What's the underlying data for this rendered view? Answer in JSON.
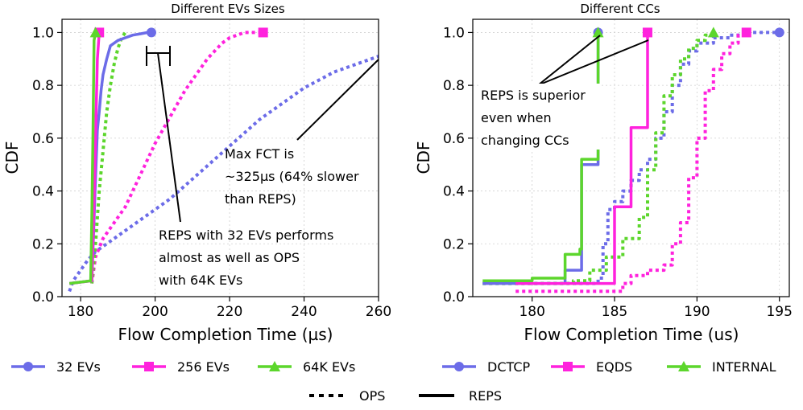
{
  "colors": {
    "c32": "#6c6ce8",
    "c256": "#ff22dd",
    "c64k": "#5cd62c"
  },
  "chart_data": [
    {
      "type": "line",
      "title": "Different EVs Sizes",
      "xlabel": "Flow Completion Time (µs)",
      "ylabel": "CDF",
      "xlim": [
        175,
        260
      ],
      "ylim": [
        0,
        1.05
      ],
      "xticks": [
        180,
        200,
        220,
        240,
        260
      ],
      "yticks": [
        0.0,
        0.2,
        0.4,
        0.6,
        0.8,
        1.0
      ],
      "xtick_labels": [
        "180",
        "200",
        "220",
        "240",
        "260"
      ],
      "ytick_labels": [
        "0.0",
        "0.2",
        "0.4",
        "0.6",
        "0.8",
        "1.0"
      ],
      "series": [
        {
          "name": "32 EVs OPS",
          "color_key": "c32",
          "style": "dotted",
          "endmarker": "none",
          "x": [
            177,
            178,
            180,
            182,
            184,
            188,
            192,
            196,
            200,
            204,
            208,
            212,
            216,
            220,
            224,
            228,
            232,
            236,
            240,
            244,
            248,
            252,
            256,
            260
          ],
          "y": [
            0.02,
            0.06,
            0.1,
            0.14,
            0.17,
            0.21,
            0.25,
            0.29,
            0.33,
            0.37,
            0.42,
            0.47,
            0.52,
            0.57,
            0.62,
            0.67,
            0.71,
            0.75,
            0.79,
            0.82,
            0.85,
            0.87,
            0.89,
            0.91
          ]
        },
        {
          "name": "256 EVs OPS",
          "color_key": "c256",
          "style": "dotted",
          "endmarker": "square",
          "x": [
            183,
            184,
            186,
            188,
            190,
            192,
            194,
            196,
            198,
            200,
            202,
            204,
            206,
            208,
            210,
            212,
            214,
            216,
            218,
            220,
            222,
            224,
            226,
            229
          ],
          "y": [
            0.05,
            0.15,
            0.22,
            0.26,
            0.3,
            0.34,
            0.4,
            0.46,
            0.52,
            0.58,
            0.63,
            0.68,
            0.73,
            0.78,
            0.82,
            0.86,
            0.9,
            0.93,
            0.96,
            0.98,
            0.99,
            1.0,
            1.0,
            1.0
          ]
        },
        {
          "name": "64K EVs OPS",
          "color_key": "c64k",
          "style": "dotted",
          "endmarker": "none",
          "x": [
            183,
            184,
            185,
            186,
            187,
            188,
            189,
            190,
            191,
            192
          ],
          "y": [
            0.05,
            0.2,
            0.4,
            0.55,
            0.7,
            0.8,
            0.88,
            0.94,
            0.98,
            1.0
          ]
        },
        {
          "name": "32 EVs REPS",
          "color_key": "c32",
          "style": "solid",
          "endmarker": "circle",
          "x": [
            177,
            183,
            183.5,
            184,
            184.5,
            185,
            185.5,
            186,
            187,
            188,
            190,
            192,
            194,
            196,
            198,
            199
          ],
          "y": [
            0.05,
            0.06,
            0.25,
            0.45,
            0.63,
            0.7,
            0.78,
            0.84,
            0.9,
            0.95,
            0.97,
            0.98,
            0.99,
            0.995,
            1.0,
            1.0
          ]
        },
        {
          "name": "256 EVs REPS",
          "color_key": "c256",
          "style": "solid",
          "endmarker": "square",
          "x": [
            177,
            183,
            183.5,
            184,
            184.5,
            185
          ],
          "y": [
            0.05,
            0.06,
            0.3,
            0.6,
            0.9,
            1.0
          ]
        },
        {
          "name": "64K EVs REPS",
          "color_key": "c64k",
          "style": "solid",
          "endmarker": "triangle",
          "x": [
            177,
            182.7,
            183,
            183.3,
            183.6,
            184
          ],
          "y": [
            0.05,
            0.06,
            0.3,
            0.6,
            0.97,
            1.0
          ]
        }
      ],
      "annotations": [
        {
          "lines": [
            "Max FCT is",
            "~325µs (64% slower",
            "than REPS)"
          ]
        },
        {
          "lines": [
            "REPS with 32 EVs performs",
            "almost as well as OPS",
            "with 64K EVs"
          ]
        }
      ]
    },
    {
      "type": "line",
      "title": "Different CCs",
      "xlabel": "Flow Completion Time (us)",
      "ylabel": "CDF",
      "xlim": [
        176.4,
        195.6
      ],
      "ylim": [
        0,
        1.05
      ],
      "xticks": [
        180,
        185,
        190,
        195
      ],
      "yticks": [
        0.0,
        0.2,
        0.4,
        0.6,
        0.8,
        1.0
      ],
      "xtick_labels": [
        "180",
        "185",
        "190",
        "195"
      ],
      "ytick_labels": [
        "0.0",
        "0.2",
        "0.4",
        "0.6",
        "0.8",
        "1.0"
      ],
      "series": [
        {
          "name": "DCTCP OPS",
          "color_key": "c32",
          "style": "dotted",
          "endmarker": "circle",
          "step": true,
          "x": [
            177,
            184,
            184.3,
            184.6,
            185,
            185.5,
            186,
            186.5,
            187,
            187.5,
            188,
            188.5,
            189,
            189.5,
            190,
            191,
            192,
            193,
            195
          ],
          "y": [
            0.05,
            0.07,
            0.2,
            0.33,
            0.36,
            0.4,
            0.44,
            0.48,
            0.52,
            0.6,
            0.7,
            0.8,
            0.88,
            0.93,
            0.96,
            0.98,
            0.99,
            1.0,
            1.0
          ]
        },
        {
          "name": "EQDS OPS",
          "color_key": "c256",
          "style": "dotted",
          "endmarker": "square",
          "step": true,
          "x": [
            179,
            185.5,
            186,
            187,
            188,
            188.5,
            189,
            189.5,
            190,
            190.5,
            191,
            191.5,
            192,
            192.5,
            193
          ],
          "y": [
            0.02,
            0.05,
            0.08,
            0.1,
            0.12,
            0.2,
            0.28,
            0.45,
            0.6,
            0.78,
            0.86,
            0.92,
            0.96,
            0.99,
            1.0
          ]
        },
        {
          "name": "INTERNAL OPS",
          "color_key": "c64k",
          "style": "dotted",
          "endmarker": "triangle",
          "step": true,
          "x": [
            177,
            182.5,
            183.5,
            184.5,
            185.5,
            186.5,
            187,
            187.5,
            188,
            188.5,
            189,
            189.5,
            190,
            190.5,
            191
          ],
          "y": [
            0.05,
            0.06,
            0.1,
            0.15,
            0.22,
            0.3,
            0.48,
            0.62,
            0.76,
            0.84,
            0.9,
            0.94,
            0.97,
            0.99,
            1.0
          ]
        },
        {
          "name": "DCTCP REPS",
          "color_key": "c32",
          "style": "solid",
          "endmarker": "circle",
          "step": true,
          "x": [
            177,
            182,
            183,
            184
          ],
          "y": [
            0.05,
            0.1,
            0.5,
            1.0
          ]
        },
        {
          "name": "EQDS REPS",
          "color_key": "c256",
          "style": "solid",
          "endmarker": "square",
          "step": true,
          "x": [
            179,
            185,
            186,
            187
          ],
          "y": [
            0.05,
            0.34,
            0.64,
            1.0
          ]
        },
        {
          "name": "INTERNAL REPS",
          "color_key": "c64k",
          "style": "solid",
          "endmarker": "triangle",
          "step": true,
          "x": [
            177,
            180,
            182,
            182.9,
            183,
            184
          ],
          "y": [
            0.06,
            0.07,
            0.16,
            0.18,
            0.52,
            1.0
          ]
        }
      ],
      "annotations": [
        {
          "lines": [
            "REPS is superior",
            "even when",
            "changing CCs"
          ]
        }
      ]
    }
  ],
  "legend_left": [
    {
      "label": "32 EVs",
      "color_key": "c32",
      "marker": "circle"
    },
    {
      "label": "256 EVs",
      "color_key": "c256",
      "marker": "square"
    },
    {
      "label": "64K EVs",
      "color_key": "c64k",
      "marker": "triangle"
    }
  ],
  "legend_right": [
    {
      "label": "DCTCP",
      "color_key": "c32",
      "marker": "circle"
    },
    {
      "label": "EQDS",
      "color_key": "c256",
      "marker": "square"
    },
    {
      "label": "INTERNAL",
      "color_key": "c64k",
      "marker": "triangle"
    }
  ],
  "legend_style": [
    {
      "label": "OPS",
      "style": "dotted"
    },
    {
      "label": "REPS",
      "style": "solid"
    }
  ]
}
